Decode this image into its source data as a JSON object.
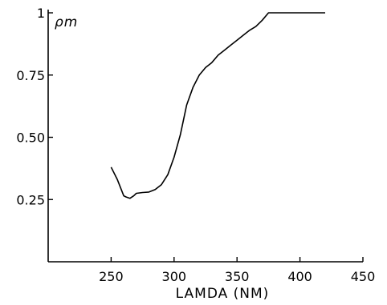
{
  "chart_data": {
    "type": "line",
    "xlabel": "LAMDA (NM)",
    "ylabel": "ρm",
    "xlim": [
      200,
      450
    ],
    "ylim": [
      0,
      1
    ],
    "xticks": [
      250,
      300,
      350,
      400,
      450
    ],
    "xtick_labels": [
      "250",
      "300",
      "350",
      "400",
      "450"
    ],
    "yticks": [
      0.25,
      0.5,
      0.75,
      1
    ],
    "ytick_labels": [
      "0.25",
      "0.50",
      "0.75",
      "1"
    ],
    "grid": false,
    "series": [
      {
        "x": [
          250,
          255,
          260,
          262,
          265,
          268,
          270,
          275,
          280,
          285,
          290,
          295,
          300,
          305,
          310,
          315,
          320,
          325,
          330,
          335,
          340,
          345,
          350,
          355,
          360,
          365,
          370,
          375,
          378,
          390,
          400,
          410,
          420
        ],
        "y": [
          0.38,
          0.33,
          0.265,
          0.26,
          0.255,
          0.265,
          0.275,
          0.278,
          0.28,
          0.29,
          0.31,
          0.35,
          0.42,
          0.51,
          0.63,
          0.7,
          0.75,
          0.78,
          0.8,
          0.83,
          0.85,
          0.87,
          0.89,
          0.91,
          0.93,
          0.945,
          0.97,
          1.0,
          1.0,
          1.0,
          1.0,
          1.0,
          1.0
        ]
      }
    ]
  }
}
